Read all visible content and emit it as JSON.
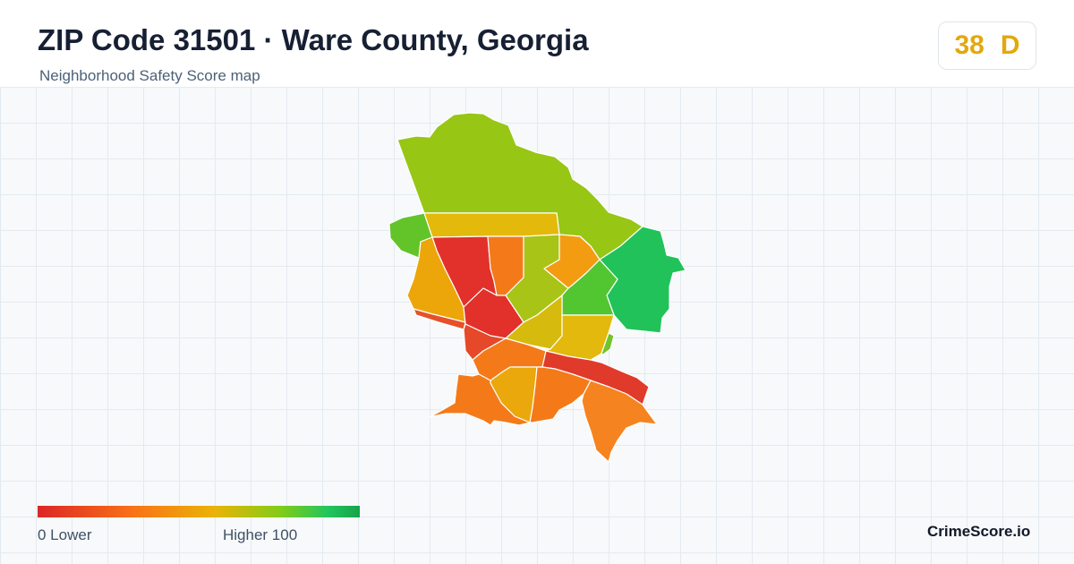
{
  "header": {
    "title": "ZIP Code 31501 · Ware County, Georgia",
    "subtitle": "Neighborhood Safety Score map"
  },
  "score": {
    "value": "38",
    "grade": "D",
    "color": "#e2a80d"
  },
  "map": {
    "regions": [
      {
        "name": "north",
        "color": "#97c615"
      },
      {
        "name": "west-small",
        "color": "#63c42a"
      },
      {
        "name": "north-band",
        "color": "#e3b90c"
      },
      {
        "name": "nw-red",
        "color": "#e1312a"
      },
      {
        "name": "center-orange",
        "color": "#f47a19"
      },
      {
        "name": "center-lime",
        "color": "#a8c416"
      },
      {
        "name": "ne-orange",
        "color": "#f39c12"
      },
      {
        "name": "east",
        "color": "#21c25a"
      },
      {
        "name": "east-mid",
        "color": "#52c630"
      },
      {
        "name": "west-amber",
        "color": "#eca60a"
      },
      {
        "name": "center-red",
        "color": "#e1312a"
      },
      {
        "name": "center-red-2",
        "color": "#e5512a"
      },
      {
        "name": "center-yellow",
        "color": "#d6bb0e"
      },
      {
        "name": "east-yellow",
        "color": "#e2b90c"
      },
      {
        "name": "east-green-small",
        "color": "#72c42a"
      },
      {
        "name": "sw-red",
        "color": "#e5492a"
      },
      {
        "name": "south-center-orange",
        "color": "#f47a19"
      },
      {
        "name": "red-strip",
        "color": "#e03a2a"
      },
      {
        "name": "south-amber",
        "color": "#eaa80c"
      },
      {
        "name": "south-orange",
        "color": "#f47a19"
      },
      {
        "name": "se-orange",
        "color": "#f58420"
      },
      {
        "name": "sw-orange",
        "color": "#f47a19"
      }
    ]
  },
  "legend": {
    "low_label": "0  Lower",
    "high_label": "Higher  100"
  },
  "brand": "CrimeScore.io"
}
